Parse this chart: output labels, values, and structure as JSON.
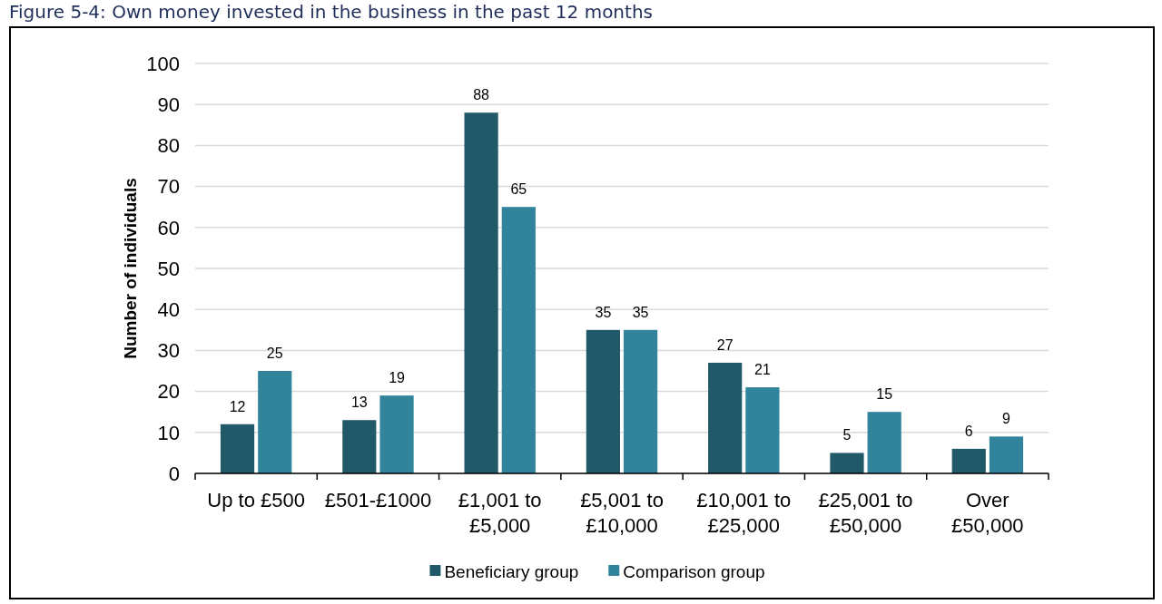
{
  "chart_data": {
    "type": "bar",
    "title": "Figure 5-4: Own money invested in the business in the past 12 months",
    "ylabel": "Number of individuals",
    "categories": [
      "Up to £500",
      "£501-£1000",
      "£1,001 to £5,000",
      "£5,001 to £10,000",
      "£10,001 to £25,000",
      "£25,001 to £50,000",
      "Over £50,000"
    ],
    "series": [
      {
        "name": "Beneficiary group",
        "color": "#215968",
        "values": [
          12,
          13,
          88,
          35,
          27,
          5,
          6
        ]
      },
      {
        "name": "Comparison group",
        "color": "#31849b",
        "values": [
          25,
          19,
          65,
          35,
          21,
          15,
          9
        ]
      }
    ],
    "ylim": [
      0,
      100
    ],
    "yticks": [
      0,
      10,
      20,
      30,
      40,
      50,
      60,
      70,
      80,
      90,
      100
    ],
    "grid": "y",
    "legend": "bottom",
    "data_labels": true
  }
}
